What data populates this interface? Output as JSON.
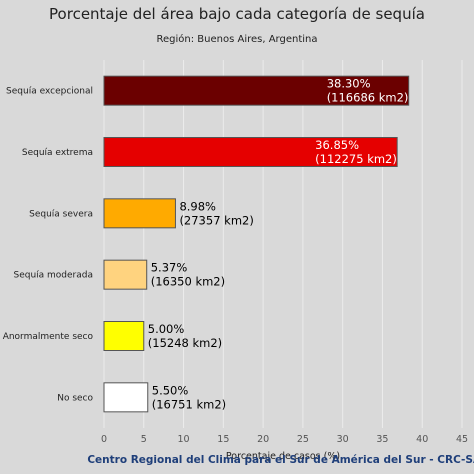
{
  "chart_data": {
    "type": "bar",
    "orientation": "horizontal",
    "title": "Porcentaje del área bajo cada categoría de sequía",
    "subtitle": "Región: Buenos Aires, Argentina",
    "xlabel": "Porcentaje de casos (%)",
    "ylabel": "",
    "xlim": [
      0,
      45
    ],
    "xticks": [
      0,
      5,
      10,
      15,
      20,
      25,
      30,
      35,
      40,
      45
    ],
    "grid": true,
    "categories": [
      "Sequía excepcional",
      "Sequía extrema",
      "Sequía severa",
      "Sequía moderada",
      "Anormalmente seco",
      "No seco"
    ],
    "values": [
      38.3,
      36.85,
      8.98,
      5.37,
      5.0,
      5.5
    ],
    "labels": [
      [
        "38.30%",
        "(116686 km2)"
      ],
      [
        "36.85%",
        "(112275 km2)"
      ],
      [
        "8.98%",
        "(27357 km2)"
      ],
      [
        "5.37%",
        "(16350 km2)"
      ],
      [
        "5.00%",
        "(15248 km2)"
      ],
      [
        "5.50%",
        "(16751 km2)"
      ]
    ],
    "colors": [
      "#6b0000",
      "#e50000",
      "#ffaa00",
      "#ffd37f",
      "#ffff00",
      "#ffffff"
    ],
    "label_colors": [
      "#ffffff",
      "#ffffff",
      "#000000",
      "#000000",
      "#000000",
      "#000000"
    ]
  },
  "footer": "Centro Regional del Clima para el Sur de América del Sur - CRC-SAS"
}
